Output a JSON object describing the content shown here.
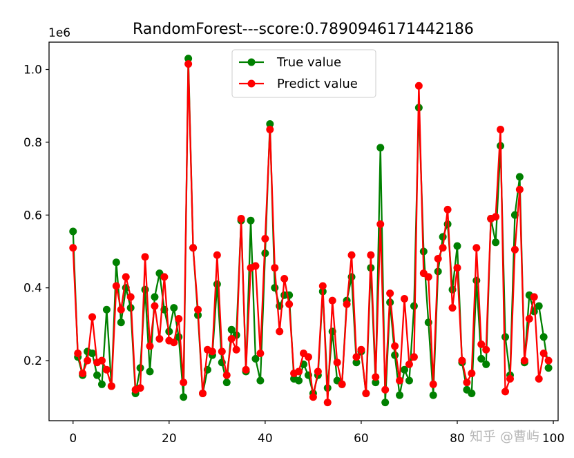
{
  "chart_data": {
    "type": "line",
    "title": "RandomForest---score:0.7890946171442186",
    "xlabel": "",
    "ylabel": "",
    "y_offset_label": "1e6",
    "xlim": [
      -5,
      101
    ],
    "ylim": [
      0.035,
      1.075
    ],
    "x_ticks": [
      0,
      20,
      40,
      60,
      80,
      100
    ],
    "y_ticks": [
      0.2,
      0.4,
      0.6,
      0.8,
      1.0
    ],
    "x_tick_labels": [
      "0",
      "20",
      "40",
      "60",
      "80",
      "100"
    ],
    "y_tick_labels": [
      "0.2",
      "0.4",
      "0.6",
      "0.8",
      "1.0"
    ],
    "grid": false,
    "legend_position": "top-center",
    "x": [
      0,
      1,
      2,
      3,
      4,
      5,
      6,
      7,
      8,
      9,
      10,
      11,
      12,
      13,
      14,
      15,
      16,
      17,
      18,
      19,
      20,
      21,
      22,
      23,
      24,
      25,
      26,
      27,
      28,
      29,
      30,
      31,
      32,
      33,
      34,
      35,
      36,
      37,
      38,
      39,
      40,
      41,
      42,
      43,
      44,
      45,
      46,
      47,
      48,
      49,
      50,
      51,
      52,
      53,
      54,
      55,
      56,
      57,
      58,
      59,
      60,
      61,
      62,
      63,
      64,
      65,
      66,
      67,
      68,
      69,
      70,
      71,
      72,
      73,
      74,
      75,
      76,
      77,
      78,
      79,
      80,
      81,
      82,
      83,
      84,
      85,
      86,
      87,
      88,
      89,
      90,
      91,
      92,
      93,
      94,
      95,
      96,
      97,
      98,
      99
    ],
    "series": [
      {
        "name": "True value",
        "color": "#008000",
        "values": [
          0.555,
          0.21,
          0.16,
          0.225,
          0.22,
          0.16,
          0.135,
          0.34,
          0.13,
          0.47,
          0.305,
          0.4,
          0.345,
          0.11,
          0.18,
          0.395,
          0.17,
          0.375,
          0.44,
          0.34,
          0.28,
          0.345,
          0.265,
          0.1,
          1.03,
          0.51,
          0.325,
          0.11,
          0.175,
          0.215,
          0.41,
          0.195,
          0.14,
          0.285,
          0.27,
          0.585,
          0.17,
          0.585,
          0.205,
          0.145,
          0.495,
          0.85,
          0.4,
          0.35,
          0.38,
          0.38,
          0.15,
          0.145,
          0.19,
          0.16,
          0.11,
          0.16,
          0.39,
          0.125,
          0.28,
          0.145,
          0.135,
          0.365,
          0.43,
          0.195,
          0.225,
          0.11,
          0.455,
          0.14,
          0.785,
          0.085,
          0.36,
          0.215,
          0.105,
          0.175,
          0.145,
          0.35,
          0.895,
          0.5,
          0.305,
          0.105,
          0.445,
          0.54,
          0.575,
          0.395,
          0.515,
          0.195,
          0.12,
          0.11,
          0.42,
          0.205,
          0.19,
          0.59,
          0.525,
          0.79,
          0.265,
          0.16,
          0.6,
          0.705,
          0.195,
          0.38,
          0.335,
          0.35,
          0.265,
          0.18
        ]
      },
      {
        "name": "Predict value",
        "color": "#ff0000",
        "values": [
          0.51,
          0.22,
          0.165,
          0.2,
          0.32,
          0.195,
          0.2,
          0.175,
          0.13,
          0.405,
          0.34,
          0.43,
          0.375,
          0.12,
          0.125,
          0.485,
          0.24,
          0.35,
          0.26,
          0.43,
          0.255,
          0.25,
          0.315,
          0.14,
          1.015,
          0.51,
          0.34,
          0.11,
          0.23,
          0.225,
          0.49,
          0.225,
          0.16,
          0.26,
          0.23,
          0.59,
          0.175,
          0.455,
          0.46,
          0.22,
          0.535,
          0.835,
          0.455,
          0.28,
          0.425,
          0.355,
          0.165,
          0.17,
          0.22,
          0.21,
          0.1,
          0.17,
          0.405,
          0.085,
          0.365,
          0.195,
          0.135,
          0.355,
          0.49,
          0.21,
          0.23,
          0.11,
          0.49,
          0.155,
          0.575,
          0.12,
          0.385,
          0.24,
          0.145,
          0.37,
          0.19,
          0.21,
          0.955,
          0.44,
          0.43,
          0.135,
          0.48,
          0.51,
          0.615,
          0.345,
          0.455,
          0.2,
          0.14,
          0.165,
          0.51,
          0.245,
          0.23,
          0.59,
          0.595,
          0.835,
          0.115,
          0.15,
          0.505,
          0.67,
          0.2,
          0.315,
          0.375,
          0.15,
          0.22,
          0.2
        ]
      }
    ]
  },
  "watermark": {
    "text": "知乎 @曹屿"
  }
}
